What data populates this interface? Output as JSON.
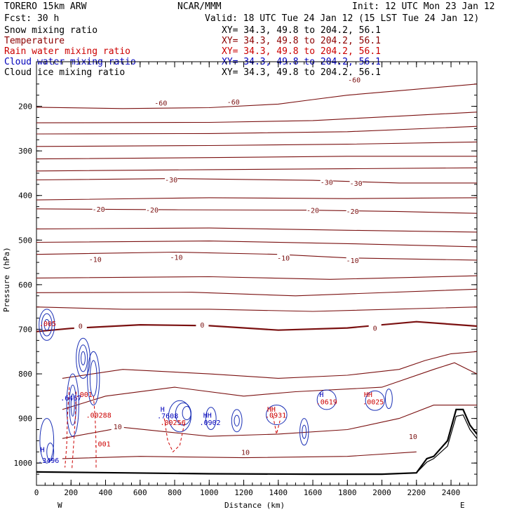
{
  "header": {
    "model": "TORERO  15km ARW",
    "org": "NCAR/MMM",
    "init": "Init: 12 UTC Mon 23 Jan 12",
    "fcst": "Fcst:   30 h",
    "valid": "Valid: 18 UTC Tue 24 Jan 12 (15 LST Tue 24 Jan 12)"
  },
  "fields": [
    {
      "name": "Snow mixing ratio",
      "xy": "XY=  34.3, 49.8 to 204.2, 56.1",
      "color": "#000000"
    },
    {
      "name": "Temperature",
      "xy": "XY=  34.3, 49.8 to 204.2, 56.1",
      "color": "#8b0000"
    },
    {
      "name": "Rain water mixing ratio",
      "xy": "XY=  34.3, 49.8 to 204.2, 56.1",
      "color": "#cc0000"
    },
    {
      "name": "Cloud water mixing ratio",
      "xy": "XY=  34.3, 49.8 to 204.2, 56.1",
      "color": "#0000bb"
    },
    {
      "name": "Cloud ice mixing ratio",
      "xy": "XY=  34.3, 49.8 to 204.2, 56.1",
      "color": "#000000"
    }
  ],
  "chart_data": {
    "type": "line",
    "xlabel": "Distance (km)",
    "ylabel": "Pressure (hPa)",
    "xlim": [
      0,
      2550
    ],
    "ylim": [
      1050,
      100
    ],
    "xticks": [
      0,
      200,
      400,
      600,
      800,
      1000,
      1200,
      1400,
      1600,
      1800,
      2000,
      2200,
      2400
    ],
    "yticks": [
      200,
      300,
      400,
      500,
      600,
      700,
      800,
      900,
      1000
    ],
    "x_end_labels": {
      "left": "W",
      "right": "E"
    },
    "temperature_contours": [
      {
        "label": "-60",
        "p": [
          [
            0,
            202
          ],
          [
            500,
            205
          ],
          [
            1000,
            203
          ],
          [
            1400,
            195
          ],
          [
            1600,
            185
          ],
          [
            1800,
            175
          ],
          [
            2100,
            165
          ],
          [
            2550,
            150
          ]
        ],
        "labels_at": [
          [
            720,
            192
          ],
          [
            1140,
            190
          ],
          [
            1840,
            140
          ]
        ]
      },
      {
        "label": "",
        "p": [
          [
            0,
            237
          ],
          [
            1000,
            236
          ],
          [
            1600,
            232
          ],
          [
            2100,
            222
          ],
          [
            2550,
            213
          ]
        ]
      },
      {
        "label": "",
        "p": [
          [
            0,
            262
          ],
          [
            1000,
            261
          ],
          [
            1800,
            257
          ],
          [
            2550,
            245
          ]
        ]
      },
      {
        "label": "",
        "p": [
          [
            0,
            290
          ],
          [
            1000,
            288
          ],
          [
            1800,
            285
          ],
          [
            2550,
            280
          ]
        ]
      },
      {
        "label": "",
        "p": [
          [
            0,
            318
          ],
          [
            1000,
            315
          ],
          [
            1800,
            312
          ],
          [
            2550,
            312
          ]
        ]
      },
      {
        "label": "",
        "p": [
          [
            0,
            345
          ],
          [
            1000,
            342
          ],
          [
            1800,
            340
          ],
          [
            2550,
            338
          ]
        ]
      },
      {
        "label": "-30",
        "p": [
          [
            0,
            365
          ],
          [
            800,
            362
          ],
          [
            1600,
            366
          ],
          [
            2100,
            372
          ],
          [
            2550,
            372
          ]
        ],
        "labels_at": [
          [
            780,
            364
          ],
          [
            1680,
            370
          ],
          [
            1850,
            372
          ]
        ]
      },
      {
        "label": "",
        "p": [
          [
            0,
            410
          ],
          [
            1000,
            405
          ],
          [
            1800,
            407
          ],
          [
            2550,
            405
          ]
        ]
      },
      {
        "label": "-20",
        "p": [
          [
            0,
            430
          ],
          [
            800,
            432
          ],
          [
            1600,
            433
          ],
          [
            2100,
            436
          ],
          [
            2550,
            440
          ]
        ],
        "labels_at": [
          [
            360,
            430
          ],
          [
            670,
            432
          ],
          [
            1600,
            433
          ],
          [
            1830,
            435
          ]
        ]
      },
      {
        "label": "",
        "p": [
          [
            0,
            475
          ],
          [
            1000,
            473
          ],
          [
            1800,
            478
          ],
          [
            2550,
            482
          ]
        ]
      },
      {
        "label": "",
        "p": [
          [
            0,
            505
          ],
          [
            1000,
            502
          ],
          [
            1800,
            508
          ],
          [
            2550,
            515
          ]
        ]
      },
      {
        "label": "-10",
        "p": [
          [
            0,
            532
          ],
          [
            800,
            527
          ],
          [
            1400,
            532
          ],
          [
            1800,
            540
          ],
          [
            2550,
            545
          ]
        ],
        "labels_at": [
          [
            340,
            543
          ],
          [
            810,
            538
          ],
          [
            1430,
            540
          ],
          [
            1830,
            545
          ]
        ]
      },
      {
        "label": "",
        "p": [
          [
            0,
            585
          ],
          [
            1000,
            582
          ],
          [
            1700,
            588
          ],
          [
            2550,
            580
          ]
        ]
      },
      {
        "label": "",
        "p": [
          [
            0,
            618
          ],
          [
            900,
            617
          ],
          [
            1500,
            625
          ],
          [
            2550,
            610
          ]
        ]
      },
      {
        "label": "",
        "p": [
          [
            0,
            650
          ],
          [
            500,
            655
          ],
          [
            1000,
            655
          ],
          [
            1600,
            660
          ],
          [
            2550,
            650
          ]
        ]
      },
      {
        "label": "0",
        "p": [
          [
            0,
            705
          ],
          [
            200,
            698
          ],
          [
            600,
            690
          ],
          [
            1000,
            692
          ],
          [
            1400,
            702
          ],
          [
            1800,
            697
          ],
          [
            2200,
            683
          ],
          [
            2550,
            693
          ]
        ],
        "labels_at": [
          [
            255,
            692
          ],
          [
            960,
            690
          ],
          [
            1960,
            697
          ]
        ],
        "bold": true
      },
      {
        "label": "",
        "p": [
          [
            150,
            810
          ],
          [
            500,
            790
          ],
          [
            1000,
            800
          ],
          [
            1400,
            810
          ],
          [
            1800,
            803
          ],
          [
            2100,
            790
          ],
          [
            2250,
            770
          ],
          [
            2400,
            755
          ],
          [
            2550,
            750
          ]
        ]
      },
      {
        "label": "",
        "p": [
          [
            150,
            880
          ],
          [
            400,
            850
          ],
          [
            800,
            830
          ],
          [
            1200,
            850
          ],
          [
            1500,
            840
          ],
          [
            2000,
            830
          ],
          [
            2300,
            790
          ],
          [
            2420,
            775
          ],
          [
            2550,
            800
          ]
        ]
      },
      {
        "label": "10",
        "p": [
          [
            150,
            945
          ],
          [
            500,
            920
          ],
          [
            1000,
            940
          ],
          [
            1400,
            935
          ],
          [
            1800,
            925
          ],
          [
            2100,
            900
          ],
          [
            2300,
            870
          ],
          [
            2550,
            870
          ]
        ],
        "labels_at": [
          [
            470,
            918
          ],
          [
            1210,
            975
          ],
          [
            2180,
            940
          ]
        ]
      },
      {
        "label": "",
        "p": [
          [
            150,
            990
          ],
          [
            600,
            985
          ],
          [
            1200,
            988
          ],
          [
            1800,
            985
          ],
          [
            2200,
            975
          ]
        ]
      }
    ],
    "terrain": [
      [
        0,
        1020
      ],
      [
        500,
        1022
      ],
      [
        1000,
        1024
      ],
      [
        1600,
        1025
      ],
      [
        2000,
        1025
      ],
      [
        2200,
        1022
      ],
      [
        2260,
        990
      ],
      [
        2300,
        985
      ],
      [
        2380,
        950
      ],
      [
        2430,
        880
      ],
      [
        2470,
        880
      ],
      [
        2510,
        915
      ],
      [
        2550,
        935
      ]
    ],
    "terrain2": [
      [
        2200,
        1022
      ],
      [
        2260,
        998
      ],
      [
        2300,
        990
      ],
      [
        2380,
        962
      ],
      [
        2430,
        895
      ],
      [
        2470,
        892
      ],
      [
        2510,
        925
      ],
      [
        2550,
        945
      ]
    ],
    "max_labels": [
      {
        "text": "H",
        "x": 35,
        "p": 975,
        "color": "#0000bb"
      },
      {
        "text": ".3496",
        "x": 70,
        "p": 1000,
        "color": "#0000bb"
      },
      {
        "text": ".6467",
        "x": 200,
        "p": 860,
        "color": "#0000bb"
      },
      {
        "text": ".001",
        "x": 275,
        "p": 852,
        "color": "#cc0000"
      },
      {
        "text": ".00288",
        "x": 360,
        "p": 898,
        "color": "#cc0000"
      },
      {
        "text": ".001",
        "x": 380,
        "p": 963,
        "color": "#cc0000"
      },
      {
        "text": "H",
        "x": 730,
        "p": 885,
        "color": "#0000bb"
      },
      {
        "text": ".7608",
        "x": 760,
        "p": 900,
        "color": "#0000bb"
      },
      {
        "text": ".00256",
        "x": 790,
        "p": 915,
        "color": "#cc0000"
      },
      {
        "text": "HH",
        "x": 990,
        "p": 898,
        "color": "#0000bb"
      },
      {
        "text": ".0902",
        "x": 1005,
        "p": 915,
        "color": "#0000bb"
      },
      {
        "text": "HH",
        "x": 1360,
        "p": 885,
        "color": "#cc0000"
      },
      {
        "text": ".0931",
        "x": 1385,
        "p": 898,
        "color": "#cc0000"
      },
      {
        "text": "H",
        "x": 1650,
        "p": 852,
        "color": "#0000bb"
      },
      {
        "text": ".0619",
        "x": 1680,
        "p": 868,
        "color": "#cc0000"
      },
      {
        "text": "HH",
        "x": 1920,
        "p": 852,
        "color": "#cc0000"
      },
      {
        "text": ".0025",
        "x": 1950,
        "p": 868,
        "color": "#cc0000"
      },
      {
        "text": ".005",
        "x": 65,
        "p": 693,
        "color": "#cc0000"
      }
    ],
    "cloud_water_contours": [
      {
        "cx": 60,
        "cp": 690,
        "rx": 45,
        "rp": 35
      },
      {
        "cx": 60,
        "cp": 690,
        "rx": 30,
        "rp": 25
      },
      {
        "cx": 60,
        "cp": 690,
        "rx": 15,
        "rp": 12
      },
      {
        "cx": 270,
        "cp": 765,
        "rx": 40,
        "rp": 45
      },
      {
        "cx": 270,
        "cp": 765,
        "rx": 25,
        "rp": 30
      },
      {
        "cx": 270,
        "cp": 765,
        "rx": 12,
        "rp": 15
      },
      {
        "cx": 330,
        "cp": 810,
        "rx": 35,
        "rp": 60
      },
      {
        "cx": 330,
        "cp": 810,
        "rx": 20,
        "rp": 40
      },
      {
        "cx": 210,
        "cp": 870,
        "rx": 35,
        "rp": 70
      },
      {
        "cx": 210,
        "cp": 870,
        "rx": 20,
        "rp": 45
      },
      {
        "cx": 210,
        "cp": 870,
        "rx": 10,
        "rp": 25
      },
      {
        "cx": 60,
        "cp": 950,
        "rx": 40,
        "rp": 50
      },
      {
        "cx": 80,
        "cp": 975,
        "rx": 20,
        "rp": 20
      },
      {
        "cx": 830,
        "cp": 895,
        "rx": 65,
        "rp": 35
      },
      {
        "cx": 850,
        "cp": 890,
        "rx": 45,
        "rp": 25
      },
      {
        "cx": 870,
        "cp": 888,
        "rx": 25,
        "rp": 15
      },
      {
        "cx": 1010,
        "cp": 900,
        "rx": 30,
        "rp": 25
      },
      {
        "cx": 1160,
        "cp": 905,
        "rx": 30,
        "rp": 25
      },
      {
        "cx": 1160,
        "cp": 905,
        "rx": 15,
        "rp": 12
      },
      {
        "cx": 1390,
        "cp": 892,
        "rx": 60,
        "rp": 22
      },
      {
        "cx": 1550,
        "cp": 930,
        "rx": 25,
        "rp": 30
      },
      {
        "cx": 1550,
        "cp": 930,
        "rx": 12,
        "rp": 15
      },
      {
        "cx": 1680,
        "cp": 858,
        "rx": 55,
        "rp": 22
      },
      {
        "cx": 1960,
        "cp": 860,
        "rx": 55,
        "rp": 22
      },
      {
        "cx": 2040,
        "cp": 856,
        "rx": 20,
        "rp": 22
      }
    ],
    "rain_contours": [
      [
        [
          190,
          830
        ],
        [
          180,
          890
        ],
        [
          175,
          960
        ],
        [
          165,
          1010
        ]
      ],
      [
        [
          230,
          840
        ],
        [
          225,
          900
        ],
        [
          215,
          960
        ],
        [
          205,
          1015
        ]
      ],
      [
        [
          330,
          850
        ],
        [
          340,
          900
        ],
        [
          345,
          960
        ],
        [
          345,
          1015
        ]
      ],
      [
        [
          740,
          900
        ],
        [
          760,
          950
        ],
        [
          790,
          975
        ],
        [
          830,
          960
        ],
        [
          860,
          905
        ]
      ],
      [
        [
          1370,
          895
        ],
        [
          1390,
          935
        ],
        [
          1410,
          905
        ]
      ]
    ]
  }
}
